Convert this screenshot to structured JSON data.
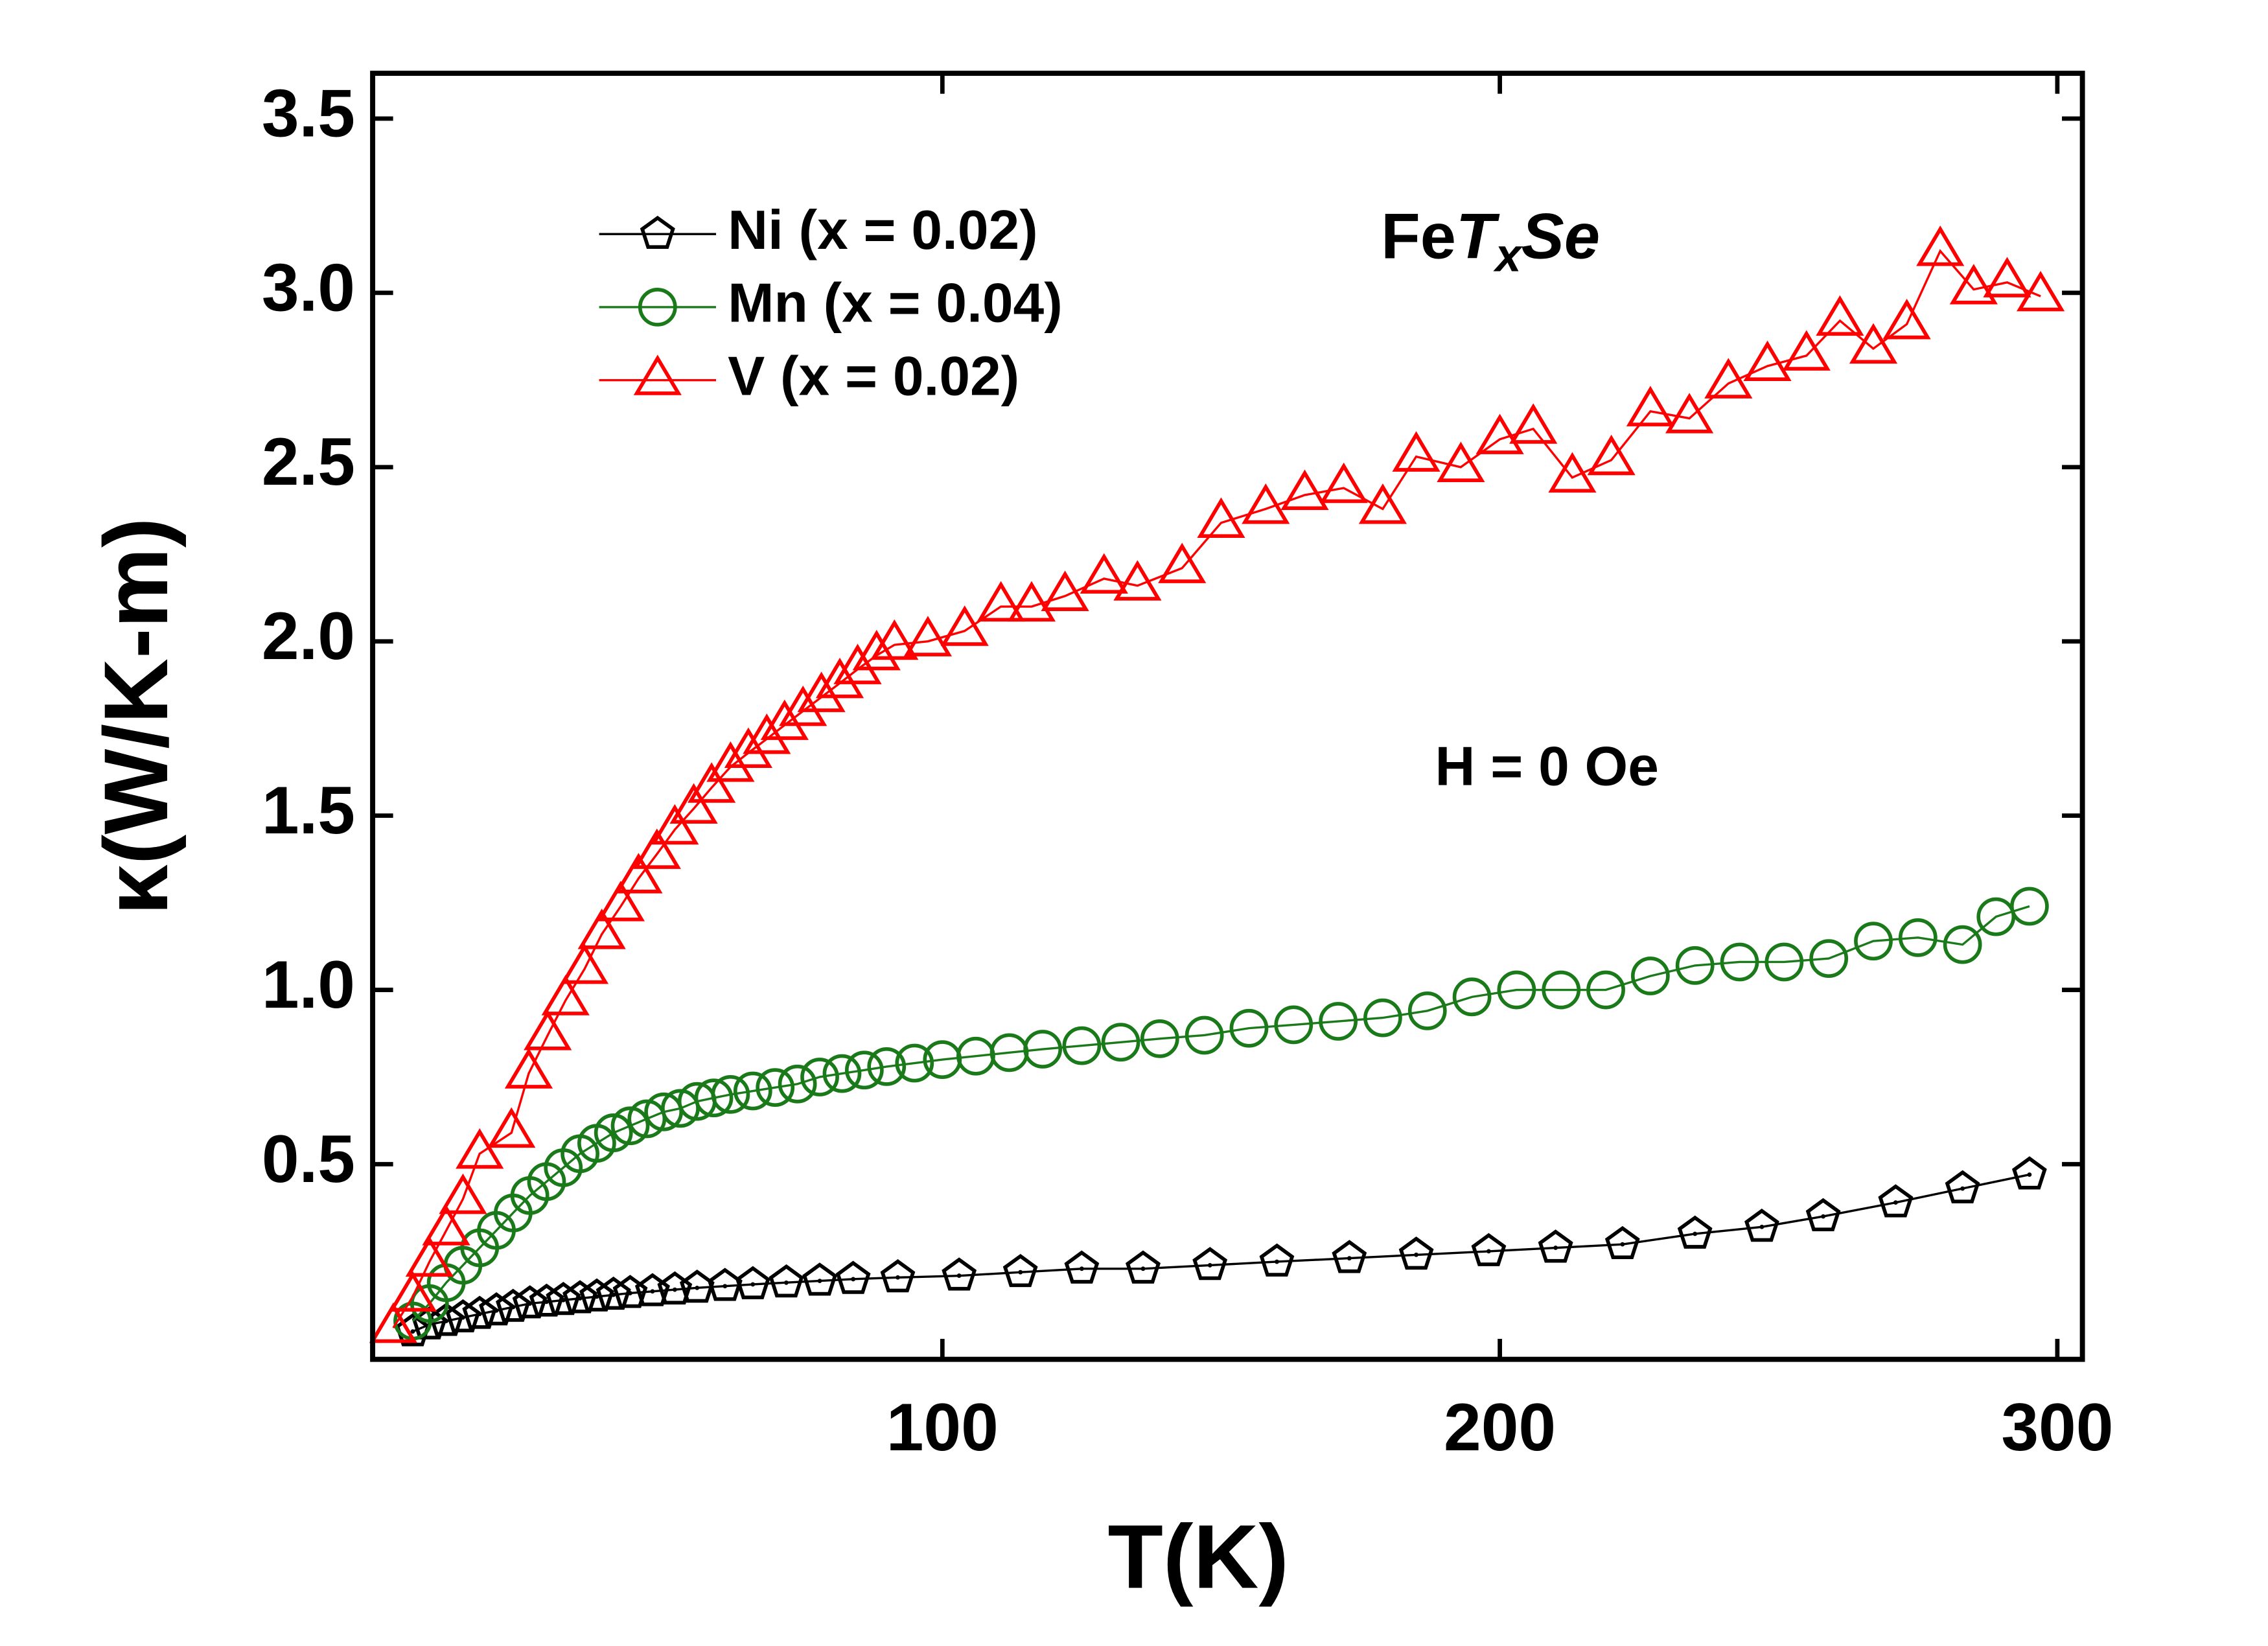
{
  "chart_data": {
    "type": "line",
    "xlabel": "T(K)",
    "ylabel": "κ(W/K-m)",
    "formula_parts": [
      "Fe",
      "T",
      "x",
      "Se"
    ],
    "annotations": [
      "H = 0 Oe"
    ],
    "xlim": [
      -2.2,
      304.5
    ],
    "ylim": [
      -0.06,
      3.63
    ],
    "xticks": [
      100,
      200,
      300
    ],
    "yticks": [
      0.5,
      {
        "value": 1.0,
        "label": "1.0"
      },
      1.5,
      {
        "value": 2.0,
        "label": "2.0"
      },
      2.5,
      {
        "value": 3.0,
        "label": "3.0"
      },
      3.5
    ],
    "legend": "upper left",
    "series": [
      {
        "name": "Ni (x = 0.02)",
        "color": "#000000",
        "marker": "pentagon",
        "x": [
          5,
          8,
          11,
          14,
          17,
          20,
          23,
          26,
          29,
          32,
          35,
          38,
          41,
          44,
          48,
          52,
          56,
          61,
          66,
          72,
          78,
          84,
          92,
          103,
          114,
          125,
          136,
          148,
          160,
          173,
          185,
          198,
          210,
          222,
          235,
          247,
          258,
          271,
          283,
          295
        ],
        "values": [
          0.02,
          0.04,
          0.05,
          0.06,
          0.07,
          0.08,
          0.09,
          0.1,
          0.105,
          0.11,
          0.115,
          0.12,
          0.125,
          0.13,
          0.135,
          0.14,
          0.145,
          0.15,
          0.155,
          0.16,
          0.165,
          0.17,
          0.175,
          0.18,
          0.19,
          0.2,
          0.2,
          0.21,
          0.22,
          0.23,
          0.24,
          0.25,
          0.26,
          0.27,
          0.3,
          0.32,
          0.35,
          0.39,
          0.43,
          0.47
        ]
      },
      {
        "name": "Mn (x = 0.04)",
        "color": "#1a7a1a",
        "marker": "circle",
        "x": [
          5,
          8,
          11,
          14,
          17,
          20,
          23,
          26,
          29,
          32,
          35,
          38,
          41,
          44,
          47,
          50,
          53,
          56,
          59,
          62,
          66,
          70,
          74,
          78,
          82,
          86,
          90,
          95,
          100,
          106,
          112,
          118,
          125,
          132,
          139,
          147,
          155,
          163,
          171,
          179,
          187,
          195,
          203,
          211,
          219,
          227,
          235,
          243,
          251,
          259,
          267,
          275,
          283,
          289,
          295
        ],
        "values": [
          0.05,
          0.1,
          0.16,
          0.21,
          0.26,
          0.31,
          0.36,
          0.41,
          0.45,
          0.49,
          0.53,
          0.56,
          0.59,
          0.61,
          0.63,
          0.65,
          0.66,
          0.68,
          0.69,
          0.7,
          0.71,
          0.72,
          0.73,
          0.75,
          0.76,
          0.77,
          0.78,
          0.79,
          0.8,
          0.81,
          0.82,
          0.83,
          0.84,
          0.85,
          0.86,
          0.87,
          0.89,
          0.9,
          0.91,
          0.92,
          0.94,
          0.98,
          1.0,
          1.0,
          1.0,
          1.04,
          1.07,
          1.08,
          1.08,
          1.09,
          1.14,
          1.15,
          1.13,
          1.21,
          1.24
        ]
      },
      {
        "name": "V (x = 0.02)",
        "color": "#ff0000",
        "marker": "triangle",
        "x": [
          1.5,
          5,
          8,
          11,
          14,
          17,
          22.7,
          25.8,
          29.2,
          32.4,
          35.8,
          38.9,
          42.3,
          45.5,
          48.8,
          52,
          55.4,
          58.6,
          62,
          65.2,
          68.5,
          71.7,
          75,
          78.3,
          81.6,
          84.8,
          88.2,
          91.4,
          97.4,
          104,
          110.5,
          116,
          122,
          129,
          135,
          143,
          150,
          158,
          165,
          172,
          179,
          185,
          193,
          200,
          206,
          213,
          220,
          227,
          234,
          241,
          248,
          255,
          261,
          267,
          273,
          279,
          285,
          291,
          297
        ],
        "values": [
          0.03,
          0.12,
          0.22,
          0.31,
          0.4,
          0.53,
          0.59,
          0.76,
          0.87,
          0.97,
          1.06,
          1.16,
          1.24,
          1.32,
          1.39,
          1.46,
          1.52,
          1.58,
          1.64,
          1.68,
          1.72,
          1.76,
          1.8,
          1.84,
          1.88,
          1.92,
          1.96,
          1.99,
          2.0,
          2.03,
          2.1,
          2.1,
          2.13,
          2.18,
          2.16,
          2.21,
          2.34,
          2.38,
          2.42,
          2.44,
          2.38,
          2.53,
          2.5,
          2.58,
          2.61,
          2.47,
          2.52,
          2.66,
          2.64,
          2.74,
          2.79,
          2.82,
          2.92,
          2.84,
          2.91,
          3.12,
          3.01,
          3.03,
          2.99
        ]
      }
    ]
  }
}
